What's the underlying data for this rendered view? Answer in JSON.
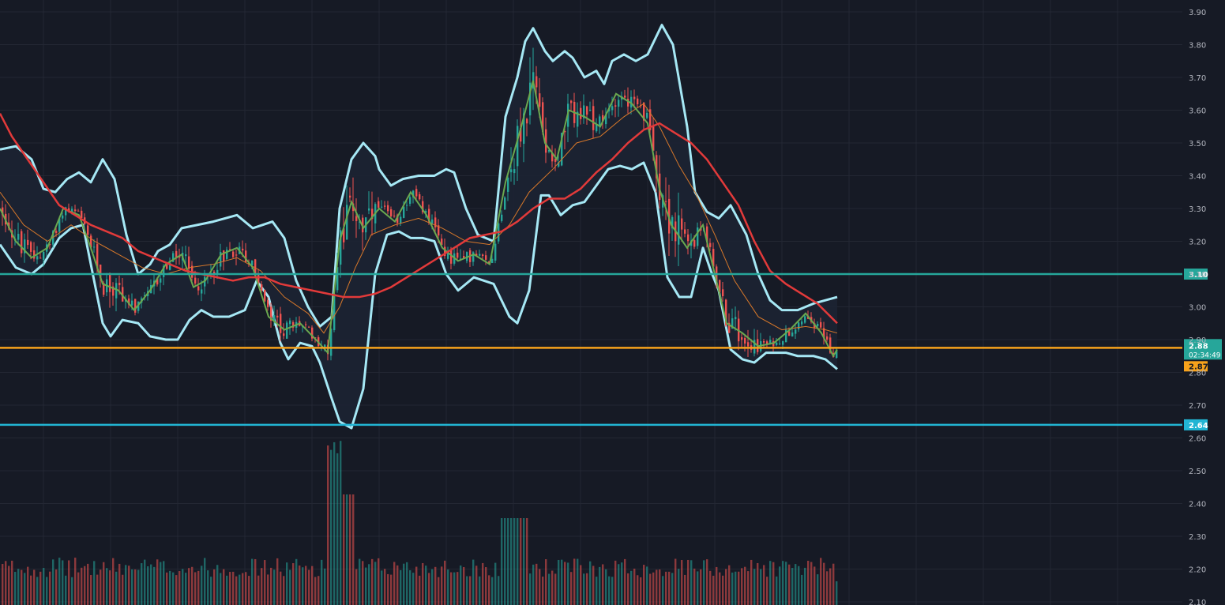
{
  "chart_data": {
    "type": "candlestick",
    "colors": {
      "background": "#161a25",
      "grid": "#232733",
      "up": "#26a69a",
      "down": "#ef5350",
      "bollinger": "#a6e8f5",
      "bollinger_fill": "#1c2433",
      "ma_slow": "#e23a3a",
      "ma_mid": "#d8782a",
      "ma_fast": "#6aa84f",
      "axis_text": "#b2b5be"
    },
    "y_axis": {
      "range": [
        2.1,
        3.92
      ],
      "ticks": [
        "3.90",
        "3.80",
        "3.70",
        "3.60",
        "3.50",
        "3.40",
        "3.30",
        "3.20",
        "3.10",
        "3.00",
        "2.90",
        "2.80",
        "2.70",
        "2.60",
        "2.50",
        "2.40",
        "2.30",
        "2.20",
        "2.10"
      ]
    },
    "x_range": [
      0,
      1500
    ],
    "horizontal_lines": [
      {
        "price": 3.1,
        "label": "3.10",
        "color": "#26a69a"
      },
      {
        "price": 2.875,
        "label": "2.87",
        "color": "#f7a21b"
      },
      {
        "price": 2.64,
        "label": "2.64",
        "color": "#22b5d4"
      }
    ],
    "last_price": {
      "label": "2.88",
      "countdown": "02:34:49",
      "color": "#26a69a",
      "price": 2.88
    },
    "bb_upper": [
      [
        0,
        3.48
      ],
      [
        20,
        3.49
      ],
      [
        40,
        3.45
      ],
      [
        55,
        3.36
      ],
      [
        70,
        3.35
      ],
      [
        85,
        3.39
      ],
      [
        100,
        3.41
      ],
      [
        115,
        3.38
      ],
      [
        130,
        3.45
      ],
      [
        145,
        3.39
      ],
      [
        160,
        3.22
      ],
      [
        175,
        3.1
      ],
      [
        190,
        3.13
      ],
      [
        200,
        3.17
      ],
      [
        215,
        3.19
      ],
      [
        230,
        3.24
      ],
      [
        250,
        3.25
      ],
      [
        270,
        3.26
      ],
      [
        300,
        3.28
      ],
      [
        320,
        3.24
      ],
      [
        345,
        3.26
      ],
      [
        360,
        3.21
      ],
      [
        375,
        3.08
      ],
      [
        390,
        3.0
      ],
      [
        405,
        2.94
      ],
      [
        420,
        2.97
      ],
      [
        430,
        3.3
      ],
      [
        445,
        3.45
      ],
      [
        460,
        3.5
      ],
      [
        475,
        3.46
      ],
      [
        480,
        3.42
      ],
      [
        495,
        3.37
      ],
      [
        510,
        3.39
      ],
      [
        530,
        3.4
      ],
      [
        550,
        3.4
      ],
      [
        565,
        3.42
      ],
      [
        575,
        3.41
      ],
      [
        590,
        3.3
      ],
      [
        605,
        3.22
      ],
      [
        625,
        3.2
      ],
      [
        640,
        3.58
      ],
      [
        655,
        3.7
      ],
      [
        665,
        3.81
      ],
      [
        675,
        3.85
      ],
      [
        690,
        3.78
      ],
      [
        700,
        3.75
      ],
      [
        715,
        3.78
      ],
      [
        725,
        3.76
      ],
      [
        740,
        3.7
      ],
      [
        755,
        3.72
      ],
      [
        765,
        3.68
      ],
      [
        775,
        3.75
      ],
      [
        790,
        3.77
      ],
      [
        805,
        3.75
      ],
      [
        820,
        3.77
      ],
      [
        838,
        3.86
      ],
      [
        852,
        3.8
      ],
      [
        870,
        3.55
      ],
      [
        880,
        3.35
      ],
      [
        895,
        3.29
      ],
      [
        910,
        3.27
      ],
      [
        925,
        3.31
      ],
      [
        945,
        3.22
      ],
      [
        960,
        3.1
      ],
      [
        975,
        3.02
      ],
      [
        990,
        2.99
      ],
      [
        1010,
        2.99
      ],
      [
        1030,
        3.01
      ],
      [
        1045,
        3.02
      ],
      [
        1060,
        3.03
      ]
    ],
    "bb_lower": [
      [
        0,
        3.19
      ],
      [
        20,
        3.12
      ],
      [
        40,
        3.1
      ],
      [
        55,
        3.13
      ],
      [
        75,
        3.21
      ],
      [
        90,
        3.24
      ],
      [
        105,
        3.25
      ],
      [
        115,
        3.13
      ],
      [
        130,
        2.95
      ],
      [
        140,
        2.91
      ],
      [
        155,
        2.96
      ],
      [
        175,
        2.95
      ],
      [
        190,
        2.91
      ],
      [
        210,
        2.9
      ],
      [
        225,
        2.9
      ],
      [
        240,
        2.96
      ],
      [
        255,
        2.99
      ],
      [
        270,
        2.97
      ],
      [
        290,
        2.97
      ],
      [
        310,
        2.99
      ],
      [
        325,
        3.08
      ],
      [
        340,
        3.03
      ],
      [
        355,
        2.89
      ],
      [
        365,
        2.84
      ],
      [
        380,
        2.89
      ],
      [
        395,
        2.88
      ],
      [
        405,
        2.83
      ],
      [
        420,
        2.72
      ],
      [
        430,
        2.65
      ],
      [
        445,
        2.63
      ],
      [
        460,
        2.75
      ],
      [
        475,
        3.1
      ],
      [
        490,
        3.22
      ],
      [
        505,
        3.23
      ],
      [
        520,
        3.21
      ],
      [
        535,
        3.21
      ],
      [
        550,
        3.2
      ],
      [
        565,
        3.1
      ],
      [
        580,
        3.05
      ],
      [
        600,
        3.09
      ],
      [
        625,
        3.07
      ],
      [
        645,
        2.97
      ],
      [
        655,
        2.95
      ],
      [
        670,
        3.05
      ],
      [
        685,
        3.34
      ],
      [
        695,
        3.34
      ],
      [
        710,
        3.28
      ],
      [
        725,
        3.31
      ],
      [
        740,
        3.32
      ],
      [
        755,
        3.37
      ],
      [
        770,
        3.42
      ],
      [
        785,
        3.43
      ],
      [
        800,
        3.42
      ],
      [
        815,
        3.44
      ],
      [
        830,
        3.35
      ],
      [
        845,
        3.09
      ],
      [
        860,
        3.03
      ],
      [
        875,
        3.03
      ],
      [
        890,
        3.18
      ],
      [
        900,
        3.11
      ],
      [
        910,
        3.05
      ],
      [
        925,
        2.87
      ],
      [
        940,
        2.84
      ],
      [
        955,
        2.83
      ],
      [
        970,
        2.86
      ],
      [
        980,
        2.86
      ],
      [
        995,
        2.86
      ],
      [
        1010,
        2.85
      ],
      [
        1030,
        2.85
      ],
      [
        1045,
        2.84
      ],
      [
        1060,
        2.81
      ]
    ],
    "ma_slow": [
      [
        0,
        3.59
      ],
      [
        15,
        3.52
      ],
      [
        35,
        3.45
      ],
      [
        55,
        3.38
      ],
      [
        75,
        3.31
      ],
      [
        95,
        3.28
      ],
      [
        115,
        3.25
      ],
      [
        135,
        3.23
      ],
      [
        155,
        3.21
      ],
      [
        175,
        3.17
      ],
      [
        195,
        3.15
      ],
      [
        215,
        3.13
      ],
      [
        235,
        3.11
      ],
      [
        255,
        3.1
      ],
      [
        275,
        3.09
      ],
      [
        295,
        3.08
      ],
      [
        315,
        3.09
      ],
      [
        335,
        3.09
      ],
      [
        355,
        3.07
      ],
      [
        375,
        3.06
      ],
      [
        395,
        3.05
      ],
      [
        415,
        3.04
      ],
      [
        435,
        3.03
      ],
      [
        455,
        3.03
      ],
      [
        475,
        3.04
      ],
      [
        495,
        3.06
      ],
      [
        515,
        3.09
      ],
      [
        535,
        3.12
      ],
      [
        555,
        3.15
      ],
      [
        575,
        3.18
      ],
      [
        595,
        3.21
      ],
      [
        615,
        3.22
      ],
      [
        635,
        3.23
      ],
      [
        655,
        3.26
      ],
      [
        675,
        3.3
      ],
      [
        695,
        3.33
      ],
      [
        715,
        3.33
      ],
      [
        735,
        3.36
      ],
      [
        755,
        3.41
      ],
      [
        775,
        3.45
      ],
      [
        795,
        3.5
      ],
      [
        815,
        3.54
      ],
      [
        835,
        3.56
      ],
      [
        855,
        3.53
      ],
      [
        875,
        3.5
      ],
      [
        895,
        3.45
      ],
      [
        915,
        3.38
      ],
      [
        935,
        3.31
      ],
      [
        955,
        3.2
      ],
      [
        975,
        3.11
      ],
      [
        995,
        3.07
      ],
      [
        1015,
        3.04
      ],
      [
        1035,
        3.01
      ],
      [
        1060,
        2.95
      ]
    ],
    "ma_mid": [
      [
        0,
        3.35
      ],
      [
        30,
        3.25
      ],
      [
        60,
        3.2
      ],
      [
        90,
        3.25
      ],
      [
        120,
        3.2
      ],
      [
        150,
        3.16
      ],
      [
        180,
        3.12
      ],
      [
        210,
        3.1
      ],
      [
        240,
        3.12
      ],
      [
        270,
        3.13
      ],
      [
        300,
        3.15
      ],
      [
        330,
        3.11
      ],
      [
        360,
        3.03
      ],
      [
        390,
        2.98
      ],
      [
        410,
        2.92
      ],
      [
        430,
        3.0
      ],
      [
        450,
        3.12
      ],
      [
        470,
        3.22
      ],
      [
        500,
        3.25
      ],
      [
        530,
        3.27
      ],
      [
        560,
        3.24
      ],
      [
        590,
        3.2
      ],
      [
        620,
        3.19
      ],
      [
        645,
        3.25
      ],
      [
        670,
        3.35
      ],
      [
        700,
        3.42
      ],
      [
        730,
        3.5
      ],
      [
        760,
        3.52
      ],
      [
        790,
        3.58
      ],
      [
        815,
        3.62
      ],
      [
        835,
        3.55
      ],
      [
        860,
        3.43
      ],
      [
        880,
        3.35
      ],
      [
        905,
        3.22
      ],
      [
        930,
        3.08
      ],
      [
        960,
        2.97
      ],
      [
        990,
        2.93
      ],
      [
        1020,
        2.94
      ],
      [
        1045,
        2.93
      ],
      [
        1060,
        2.92
      ]
    ],
    "ma_fast": [
      [
        0,
        3.3
      ],
      [
        20,
        3.2
      ],
      [
        40,
        3.15
      ],
      [
        60,
        3.18
      ],
      [
        80,
        3.3
      ],
      [
        100,
        3.28
      ],
      [
        115,
        3.18
      ],
      [
        130,
        3.07
      ],
      [
        150,
        3.05
      ],
      [
        170,
        2.99
      ],
      [
        190,
        3.05
      ],
      [
        210,
        3.13
      ],
      [
        230,
        3.16
      ],
      [
        245,
        3.06
      ],
      [
        260,
        3.08
      ],
      [
        280,
        3.16
      ],
      [
        300,
        3.18
      ],
      [
        320,
        3.12
      ],
      [
        340,
        2.97
      ],
      [
        360,
        2.93
      ],
      [
        380,
        2.95
      ],
      [
        400,
        2.9
      ],
      [
        415,
        2.86
      ],
      [
        430,
        3.2
      ],
      [
        445,
        3.32
      ],
      [
        460,
        3.24
      ],
      [
        480,
        3.3
      ],
      [
        500,
        3.26
      ],
      [
        520,
        3.35
      ],
      [
        540,
        3.28
      ],
      [
        560,
        3.18
      ],
      [
        580,
        3.14
      ],
      [
        600,
        3.16
      ],
      [
        620,
        3.13
      ],
      [
        640,
        3.38
      ],
      [
        660,
        3.55
      ],
      [
        675,
        3.69
      ],
      [
        690,
        3.5
      ],
      [
        705,
        3.45
      ],
      [
        720,
        3.6
      ],
      [
        740,
        3.58
      ],
      [
        760,
        3.55
      ],
      [
        780,
        3.65
      ],
      [
        800,
        3.62
      ],
      [
        820,
        3.56
      ],
      [
        835,
        3.36
      ],
      [
        850,
        3.25
      ],
      [
        870,
        3.18
      ],
      [
        890,
        3.25
      ],
      [
        905,
        3.1
      ],
      [
        920,
        2.95
      ],
      [
        940,
        2.92
      ],
      [
        960,
        2.88
      ],
      [
        980,
        2.89
      ],
      [
        1000,
        2.93
      ],
      [
        1020,
        2.98
      ],
      [
        1040,
        2.92
      ],
      [
        1055,
        2.85
      ],
      [
        1060,
        2.87
      ]
    ]
  }
}
